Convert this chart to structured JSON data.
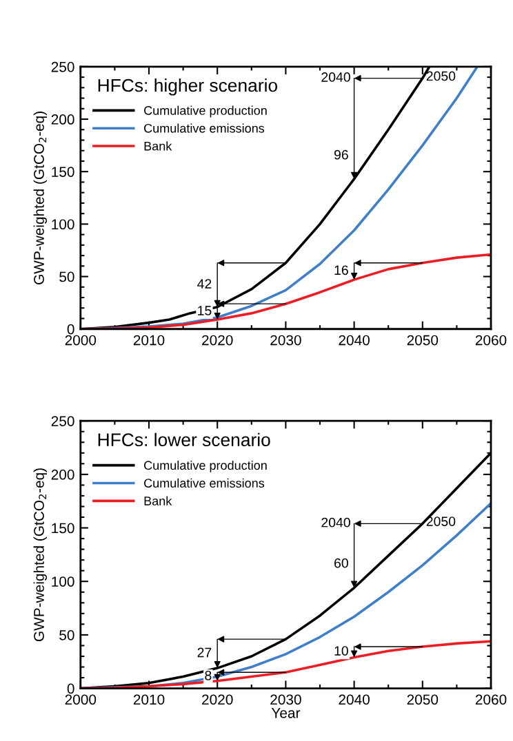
{
  "chart_data": [
    {
      "type": "line",
      "title": "HFCs: higher scenario",
      "ylabel": "GWP-weighted (GtCO$_{2}$-eq)",
      "legend": "top left",
      "grid": false,
      "xlim": [
        2000,
        2060
      ],
      "xticks": [
        2000,
        2010,
        2020,
        2030,
        2040,
        2050,
        2060
      ],
      "ylim": [
        0,
        250
      ],
      "yticks": [
        0,
        50,
        100,
        150,
        200,
        250
      ],
      "series": [
        {
          "name": "Cumulative production",
          "color": "#000000",
          "x": [
            2000,
            2005,
            2010,
            2013,
            2016,
            2020,
            2025,
            2030,
            2035,
            2040,
            2045,
            2050,
            2051
          ],
          "values": [
            0,
            2,
            6,
            9,
            15,
            21,
            38,
            63,
            100,
            143,
            190,
            239,
            250
          ]
        },
        {
          "name": "Cumulative emissions",
          "color": "#3f7fc9",
          "x": [
            2000,
            2005,
            2010,
            2015,
            2020,
            2025,
            2030,
            2035,
            2040,
            2045,
            2050,
            2055,
            2058
          ],
          "values": [
            0,
            1,
            2.5,
            5,
            11,
            22,
            37,
            62,
            94,
            133,
            175,
            220,
            250
          ]
        },
        {
          "name": "Bank",
          "color": "#ee1c23",
          "x": [
            2000,
            2005,
            2010,
            2015,
            2020,
            2025,
            2030,
            2035,
            2040,
            2045,
            2050,
            2055,
            2060
          ],
          "values": [
            0,
            0.5,
            1.5,
            4,
            9,
            15,
            24,
            35,
            47,
            57,
            63,
            68,
            71
          ]
        }
      ],
      "annotations": [
        {
          "text": "42",
          "x": 2020,
          "y": 21
        },
        {
          "text": "15",
          "x": 2020,
          "y": 9
        },
        {
          "text": "96",
          "x": 2040,
          "y": 143
        },
        {
          "text": "16",
          "x": 2040,
          "y": 47
        },
        {
          "text": "2040",
          "x": 2040,
          "y": 143
        },
        {
          "text": "2050",
          "x": 2050,
          "y": 240
        }
      ]
    },
    {
      "type": "line",
      "title": "HFCs: lower scenario",
      "xlabel": "Year",
      "ylabel": "GWP-weighted (GtCO$_{2}$-eq)",
      "legend": "top left",
      "grid": false,
      "xlim": [
        2000,
        2060
      ],
      "xticks": [
        2000,
        2010,
        2020,
        2030,
        2040,
        2050,
        2060
      ],
      "ylim": [
        0,
        250
      ],
      "yticks": [
        0,
        50,
        100,
        150,
        200,
        250
      ],
      "series": [
        {
          "name": "Cumulative production",
          "color": "#000000",
          "x": [
            2000,
            2005,
            2010,
            2015,
            2020,
            2025,
            2030,
            2035,
            2040,
            2045,
            2050,
            2055,
            2060
          ],
          "values": [
            0,
            2,
            5,
            11,
            19,
            30,
            46,
            68,
            94,
            124,
            154,
            187,
            220
          ]
        },
        {
          "name": "Cumulative emissions",
          "color": "#3f7fc9",
          "x": [
            2000,
            2005,
            2010,
            2015,
            2020,
            2025,
            2030,
            2035,
            2040,
            2045,
            2050,
            2055,
            2060
          ],
          "values": [
            0,
            1,
            2,
            5,
            11,
            20,
            32,
            48,
            67,
            90,
            115,
            143,
            173
          ]
        },
        {
          "name": "Bank",
          "color": "#ee1c23",
          "x": [
            2000,
            2005,
            2010,
            2015,
            2020,
            2025,
            2030,
            2035,
            2040,
            2045,
            2050,
            2055,
            2060
          ],
          "values": [
            0,
            0.5,
            2,
            4,
            7,
            11,
            15,
            22,
            29,
            35,
            39,
            42,
            44
          ]
        }
      ],
      "annotations": [
        {
          "text": "27",
          "x": 2020,
          "y": 19
        },
        {
          "text": "8",
          "x": 2020,
          "y": 7
        },
        {
          "text": "60",
          "x": 2040,
          "y": 94
        },
        {
          "text": "10",
          "x": 2040,
          "y": 29
        },
        {
          "text": "2040",
          "x": 2040,
          "y": 94
        },
        {
          "text": "2050",
          "x": 2050,
          "y": 155
        }
      ]
    }
  ]
}
